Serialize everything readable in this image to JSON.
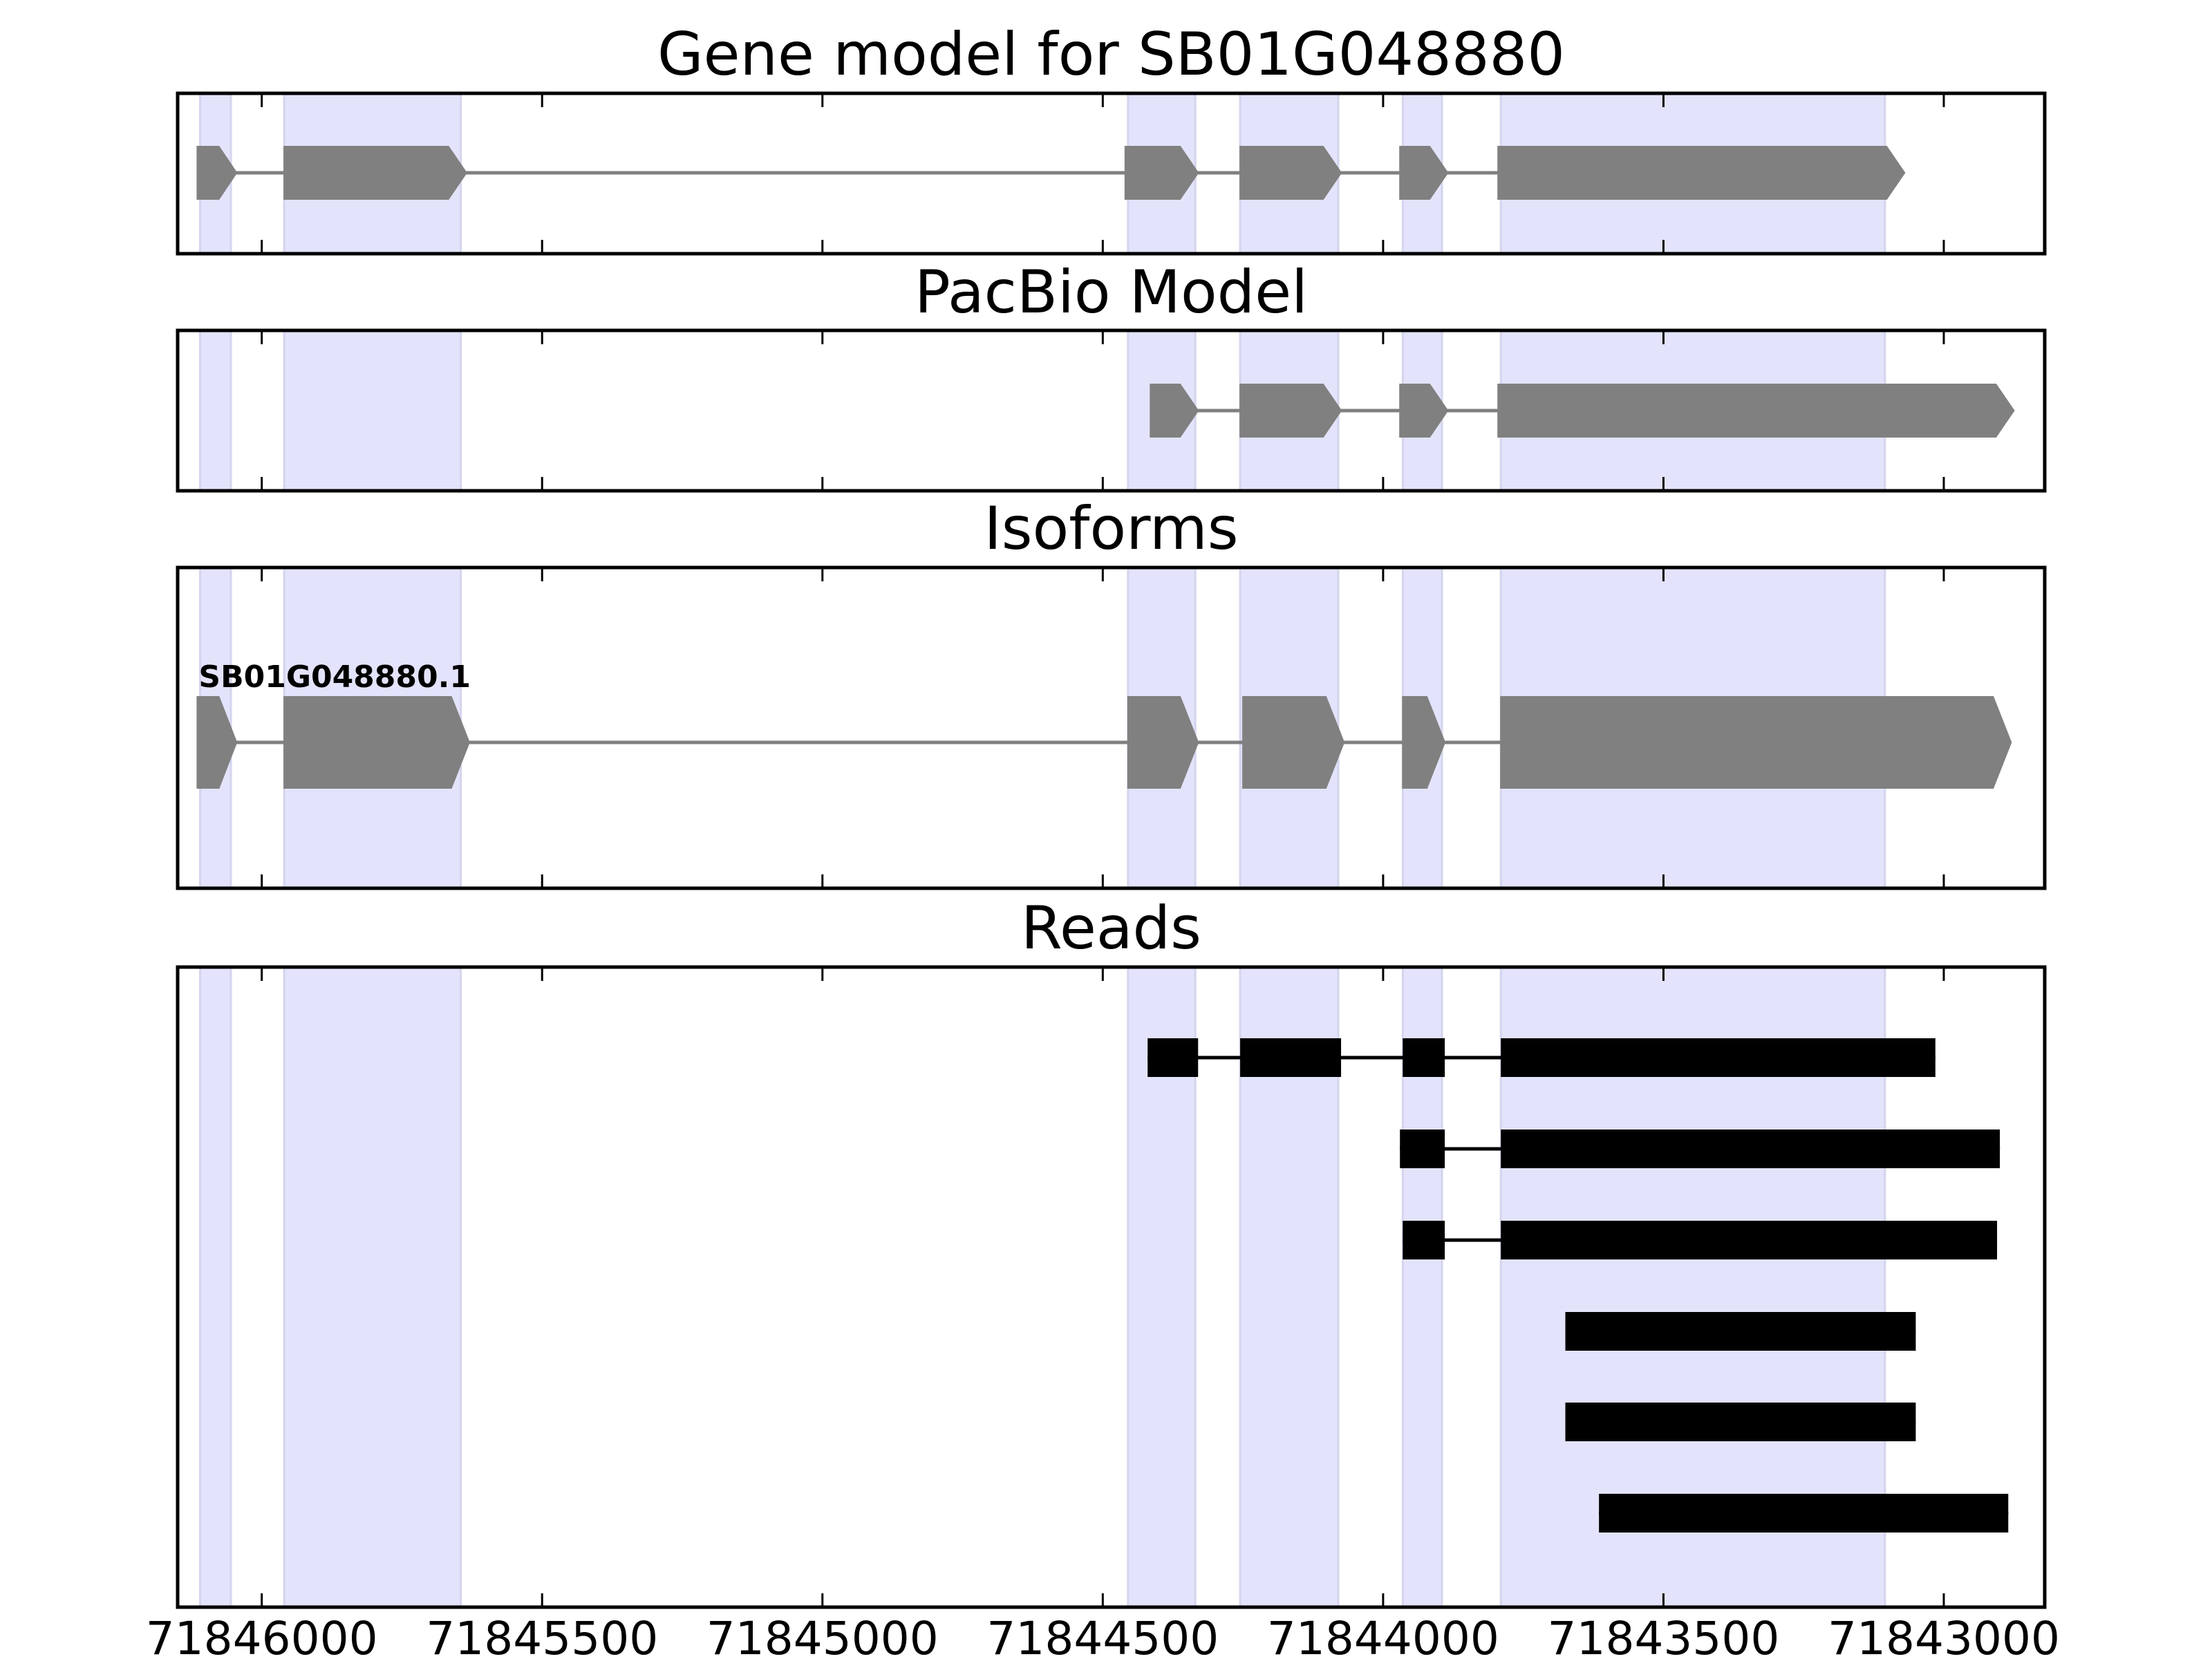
{
  "chart_data": {
    "type": "gene-structure",
    "xlim": [
      71846150,
      71842820
    ],
    "x_ticks": [
      71846000,
      71845500,
      71845000,
      71844500,
      71844000,
      71843500,
      71843000
    ],
    "x_tick_labels": [
      "71846000",
      "71845500",
      "71845000",
      "71844500",
      "71844000",
      "71843500",
      "71843000"
    ],
    "strand": "-",
    "colors": {
      "highlight": "#e3e3fb",
      "model": "#808080",
      "reads": "#000000",
      "frame": "#000000"
    },
    "highlight_regions": [
      [
        71846110,
        71846055
      ],
      [
        71845960,
        71845645
      ],
      [
        71844455,
        71844335
      ],
      [
        71844255,
        71844080
      ],
      [
        71843965,
        71843895
      ],
      [
        71843790,
        71843105
      ]
    ],
    "panels": [
      {
        "title": "Gene model for SB01G048880",
        "kind": "model",
        "tracks": [
          {
            "label": "",
            "exons": [
              [
                71846115,
                71846045
              ],
              [
                71845960,
                71845635
              ],
              [
                71844460,
                71844330
              ],
              [
                71844255,
                71844075
              ],
              [
                71843970,
                71843885
              ],
              [
                71843795,
                71843070
              ]
            ]
          }
        ]
      },
      {
        "title": "PacBio Model",
        "kind": "model",
        "tracks": [
          {
            "label": "",
            "exons": [
              [
                71844415,
                71844330
              ],
              [
                71844255,
                71844075
              ],
              [
                71843970,
                71843885
              ],
              [
                71843795,
                71842875
              ]
            ]
          }
        ]
      },
      {
        "title": "Isoforms",
        "kind": "model",
        "tracks": [
          {
            "label": "SB01G048880.1",
            "exons": [
              [
                71846115,
                71846045
              ],
              [
                71845960,
                71845630
              ],
              [
                71844455,
                71844330
              ],
              [
                71844250,
                71844070
              ],
              [
                71843965,
                71843890
              ],
              [
                71843790,
                71842880
              ]
            ]
          }
        ]
      },
      {
        "title": "Reads",
        "kind": "reads",
        "tracks": [
          {
            "exons": [
              [
                71844420,
                71844330
              ],
              [
                71844255,
                71844075
              ],
              [
                71843965,
                71843890
              ],
              [
                71843790,
                71843015
              ]
            ]
          },
          {
            "exons": [
              [
                71843970,
                71843890
              ],
              [
                71843790,
                71842900
              ]
            ]
          },
          {
            "exons": [
              [
                71843965,
                71843890
              ],
              [
                71843790,
                71842905
              ]
            ]
          },
          {
            "exons": [
              [
                71843675,
                71843050
              ]
            ]
          },
          {
            "exons": [
              [
                71843675,
                71843050
              ]
            ]
          },
          {
            "exons": [
              [
                71843615,
                71842885
              ]
            ]
          }
        ]
      }
    ]
  }
}
